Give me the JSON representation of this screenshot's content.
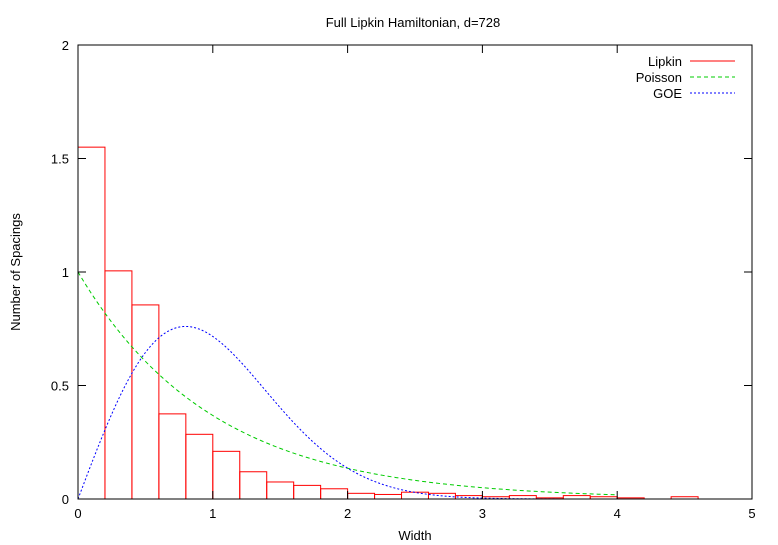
{
  "chart_data": {
    "type": "bar",
    "title": "Full Lipkin Hamiltonian, d=728",
    "xlabel": "Width",
    "ylabel": "Number of Spacings",
    "xlim": [
      0,
      5
    ],
    "ylim": [
      0,
      2
    ],
    "x_ticks": [
      "0",
      "1",
      "2",
      "3",
      "4",
      "5"
    ],
    "y_ticks": [
      "0",
      "0.5",
      "1",
      "1.5",
      "2"
    ],
    "grid": false,
    "legend_position": "top-right",
    "histogram": {
      "name": "Lipkin",
      "color": "#ff0000",
      "bin_width": 0.2,
      "bins": [
        {
          "x0": 0.0,
          "value": 1.55
        },
        {
          "x0": 0.2,
          "value": 1.005
        },
        {
          "x0": 0.4,
          "value": 0.855
        },
        {
          "x0": 0.6,
          "value": 0.375
        },
        {
          "x0": 0.8,
          "value": 0.285
        },
        {
          "x0": 1.0,
          "value": 0.21
        },
        {
          "x0": 1.2,
          "value": 0.12
        },
        {
          "x0": 1.4,
          "value": 0.075
        },
        {
          "x0": 1.6,
          "value": 0.06
        },
        {
          "x0": 1.8,
          "value": 0.045
        },
        {
          "x0": 2.0,
          "value": 0.025
        },
        {
          "x0": 2.2,
          "value": 0.02
        },
        {
          "x0": 2.4,
          "value": 0.03
        },
        {
          "x0": 2.6,
          "value": 0.025
        },
        {
          "x0": 2.8,
          "value": 0.015
        },
        {
          "x0": 3.0,
          "value": 0.01
        },
        {
          "x0": 3.2,
          "value": 0.015
        },
        {
          "x0": 3.4,
          "value": 0.005
        },
        {
          "x0": 3.6,
          "value": 0.015
        },
        {
          "x0": 3.8,
          "value": 0.01
        },
        {
          "x0": 4.0,
          "value": 0.005
        },
        {
          "x0": 4.2,
          "value": 0.0
        },
        {
          "x0": 4.4,
          "value": 0.01
        }
      ]
    },
    "series": [
      {
        "name": "Poisson",
        "color": "#00cc00",
        "dash": "dashed",
        "function": "exp(-x)",
        "x_range": [
          0,
          4
        ]
      },
      {
        "name": "GOE",
        "color": "#0000ff",
        "dash": "dotted",
        "function": "(pi/2)*x*exp(-pi*x^2/4)",
        "x_range": [
          0,
          4
        ]
      }
    ],
    "legend": [
      {
        "name": "Lipkin",
        "color": "#ff0000",
        "style": "solid"
      },
      {
        "name": "Poisson",
        "color": "#00cc00",
        "style": "dashed"
      },
      {
        "name": "GOE",
        "color": "#0000ff",
        "style": "dotted"
      }
    ]
  }
}
